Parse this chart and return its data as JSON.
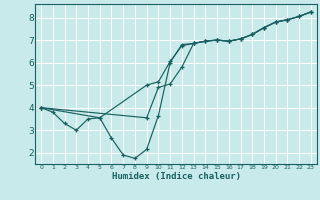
{
  "xlabel": "Humidex (Indice chaleur)",
  "bg_color": "#c8eaea",
  "grid_color": "#b0d8d8",
  "line_color": "#1a6060",
  "xlim": [
    -0.5,
    23.5
  ],
  "ylim": [
    1.5,
    8.6
  ],
  "xticks": [
    0,
    1,
    2,
    3,
    4,
    5,
    6,
    7,
    8,
    9,
    10,
    11,
    12,
    13,
    14,
    15,
    16,
    17,
    18,
    19,
    20,
    21,
    22,
    23
  ],
  "yticks": [
    2,
    3,
    4,
    5,
    6,
    7,
    8
  ],
  "line1_x": [
    0,
    1,
    2,
    3,
    4,
    5,
    6,
    7,
    8,
    9,
    10,
    11,
    12,
    13,
    14,
    15,
    16,
    17,
    18,
    19,
    20,
    21,
    22,
    23
  ],
  "line1_y": [
    4.0,
    3.8,
    3.3,
    3.0,
    3.5,
    3.55,
    2.65,
    1.9,
    1.75,
    2.15,
    3.65,
    6.0,
    6.8,
    6.85,
    6.95,
    7.0,
    6.95,
    7.05,
    7.25,
    7.55,
    7.8,
    7.9,
    8.05,
    8.25
  ],
  "line2_x": [
    0,
    5,
    9,
    10,
    11,
    12,
    13,
    14,
    15,
    16,
    17,
    18,
    19,
    20,
    21,
    22,
    23
  ],
  "line2_y": [
    4.0,
    3.55,
    5.0,
    5.15,
    6.05,
    6.75,
    6.85,
    6.95,
    7.0,
    6.95,
    7.05,
    7.25,
    7.55,
    7.8,
    7.9,
    8.05,
    8.25
  ],
  "line3_x": [
    0,
    9,
    10,
    11,
    12,
    13,
    14,
    15,
    16,
    17,
    18,
    19,
    20,
    21,
    22,
    23
  ],
  "line3_y": [
    4.0,
    3.55,
    4.9,
    5.05,
    5.8,
    6.85,
    6.95,
    7.0,
    6.95,
    7.05,
    7.25,
    7.55,
    7.8,
    7.9,
    8.05,
    8.25
  ]
}
